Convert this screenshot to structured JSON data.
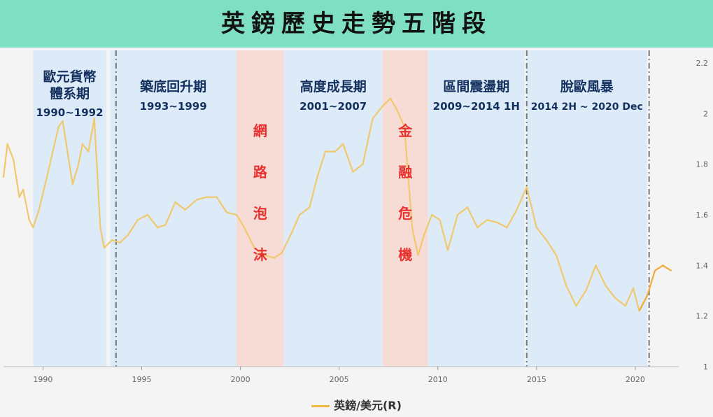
{
  "header": {
    "title": "英鎊歷史走勢五階段"
  },
  "colors": {
    "banner": "#7fdfc2",
    "line_main": "#f0c96e",
    "line_recent": "#f4a938",
    "phase_blue": "#d9eaf7",
    "phase_red": "#f7d9d3",
    "label_navy": "#14305e",
    "label_red": "#e8312f"
  },
  "legend": {
    "label": "英鎊/美元(R)"
  },
  "chart_data": {
    "type": "line",
    "title": "英鎊歷史走勢五階段",
    "xlabel": "",
    "ylabel": "",
    "xlim": [
      1988,
      2022.2
    ],
    "ylim": [
      1,
      2.25
    ],
    "grid": false,
    "legend_position": "bottom-center",
    "x_ticks": [
      1990,
      1995,
      2000,
      2005,
      2010,
      2015,
      2020
    ],
    "y_ticks": [
      1,
      1.2,
      1.4,
      1.6,
      1.8,
      2,
      2.2
    ],
    "x_tick_labels": [
      "1990",
      "1995",
      "2000",
      "2005",
      "2010",
      "2015",
      "2020"
    ],
    "y_tick_labels": [
      "1",
      "1.2",
      "1.4",
      "1.6",
      "1.8",
      "2",
      "2.2"
    ],
    "series": [
      {
        "name": "英鎊/美元(R)",
        "x": [
          1988.0,
          1988.2,
          1988.5,
          1988.8,
          1989.0,
          1989.3,
          1989.5,
          1989.8,
          1990.2,
          1990.5,
          1990.8,
          1991.0,
          1991.2,
          1991.5,
          1991.8,
          1992.0,
          1992.3,
          1992.6,
          1992.9,
          1993.1,
          1993.5,
          1993.9,
          1994.3,
          1994.8,
          1995.3,
          1995.8,
          1996.2,
          1996.7,
          1997.2,
          1997.8,
          1998.3,
          1998.8,
          1999.3,
          1999.8,
          2000.2,
          2000.7,
          2001.2,
          2001.7,
          2002.1,
          2002.6,
          2003.0,
          2003.5,
          2003.9,
          2004.3,
          2004.8,
          2005.2,
          2005.7,
          2006.2,
          2006.7,
          2007.2,
          2007.6,
          2007.9,
          2008.3,
          2008.7,
          2009.0,
          2009.3,
          2009.7,
          2010.1,
          2010.5,
          2011.0,
          2011.5,
          2012.0,
          2012.5,
          2013.0,
          2013.5,
          2014.0,
          2014.5,
          2015.0,
          2015.5,
          2016.0,
          2016.5,
          2017.0,
          2017.5,
          2018.0,
          2018.5,
          2019.0,
          2019.5,
          2019.9,
          2020.2,
          2020.6,
          2021.0,
          2021.4,
          2021.8
        ],
        "values": [
          1.75,
          1.88,
          1.82,
          1.67,
          1.7,
          1.58,
          1.55,
          1.62,
          1.75,
          1.85,
          1.95,
          1.97,
          1.87,
          1.72,
          1.8,
          1.88,
          1.85,
          1.98,
          1.55,
          1.47,
          1.5,
          1.49,
          1.52,
          1.58,
          1.6,
          1.55,
          1.56,
          1.65,
          1.62,
          1.66,
          1.67,
          1.67,
          1.61,
          1.6,
          1.55,
          1.47,
          1.44,
          1.43,
          1.45,
          1.53,
          1.6,
          1.63,
          1.75,
          1.85,
          1.85,
          1.88,
          1.77,
          1.8,
          1.98,
          2.03,
          2.06,
          2.02,
          1.95,
          1.55,
          1.44,
          1.52,
          1.6,
          1.58,
          1.46,
          1.6,
          1.63,
          1.55,
          1.58,
          1.57,
          1.55,
          1.62,
          1.71,
          1.55,
          1.5,
          1.44,
          1.32,
          1.24,
          1.3,
          1.4,
          1.32,
          1.27,
          1.24,
          1.31,
          1.22,
          1.28,
          1.38,
          1.4,
          1.38
        ]
      }
    ],
    "phases": [
      {
        "kind": "blue",
        "x0": 1989.5,
        "x1": 1993.2,
        "title": "歐元貨幣體系期",
        "title_lines": [
          "歐元貨幣",
          "體系期"
        ],
        "period": "1990~1992"
      },
      {
        "kind": "blue",
        "x0": 1993.4,
        "x1": 1999.8,
        "title": "築底回升期",
        "title_lines": [
          "築底回升期"
        ],
        "period": "1993~1999"
      },
      {
        "kind": "red",
        "x0": 1999.8,
        "x1": 2002.2,
        "title": "網路泡沫",
        "chars": [
          "網",
          "路",
          "泡",
          "沫"
        ]
      },
      {
        "kind": "blue",
        "x0": 2002.2,
        "x1": 2007.2,
        "title": "高度成長期",
        "title_lines": [
          "高度成長期"
        ],
        "period": "2001~2007"
      },
      {
        "kind": "red",
        "x0": 2007.2,
        "x1": 2009.5,
        "title": "金融危機",
        "chars": [
          "金",
          "融",
          "危",
          "機"
        ]
      },
      {
        "kind": "blue",
        "x0": 2009.5,
        "x1": 2014.4,
        "title": "區間震盪期",
        "title_lines": [
          "區間震盪期"
        ],
        "period": "2009~2014 1H"
      },
      {
        "kind": "blue",
        "x0": 2014.5,
        "x1": 2020.6,
        "title": "脫歐風暴",
        "title_lines": [
          "脫歐風暴"
        ],
        "period": "2014 2H ~ 2020 Dec"
      }
    ],
    "dividers": [
      1993.7,
      2014.5,
      2020.7
    ]
  }
}
